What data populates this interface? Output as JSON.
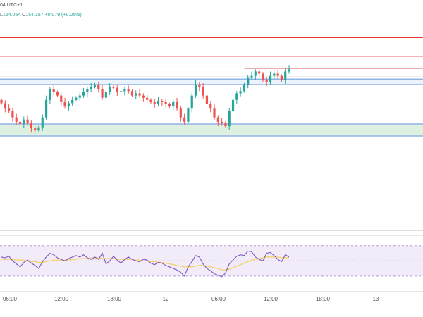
{
  "header": {
    "timezone_fragment": "04 UTC+1",
    "low_label": "L",
    "low_value": "154.054",
    "close_label": "C",
    "close_value": "154.157",
    "change": "+0.079 (+0.05%)"
  },
  "colors": {
    "up": "#26a69a",
    "down": "#ef5350",
    "resistance": "#e53935",
    "support_zone": "#c8e6c9",
    "zone_border": "#90b4e8",
    "rsi_line": "#7e57c2",
    "rsi_ma": "#f5d060",
    "rsi_band": "#ede7f6"
  },
  "x_ticks": [
    {
      "label": "06:00"
    },
    {
      "label": "12:00"
    },
    {
      "label": "18:00"
    },
    {
      "label": "12"
    },
    {
      "label": "06:00"
    },
    {
      "label": "12:00"
    },
    {
      "label": "18:00"
    },
    {
      "label": "13"
    }
  ],
  "chart_data": [
    {
      "type": "candlestick",
      "title": "",
      "xlabel": "",
      "ylabel": "",
      "ylim": [
        152.7,
        154.6
      ],
      "levels": {
        "resistance": [
          154.45,
          154.28
        ],
        "recent_high_line": 154.17,
        "upper_zone": [
          154.02,
          154.07
        ],
        "support_zone": [
          153.55,
          153.66
        ]
      },
      "close": [
        153.85,
        153.8,
        153.78,
        153.72,
        153.68,
        153.66,
        153.7,
        153.67,
        153.62,
        153.6,
        153.63,
        153.72,
        153.88,
        153.98,
        153.95,
        153.92,
        153.86,
        153.82,
        153.85,
        153.88,
        153.9,
        153.92,
        153.95,
        153.98,
        154.0,
        154.02,
        153.98,
        153.9,
        153.95,
        154.0,
        153.99,
        153.95,
        153.96,
        153.98,
        153.96,
        153.92,
        153.94,
        153.92,
        153.9,
        153.88,
        153.86,
        153.84,
        153.87,
        153.86,
        153.84,
        153.82,
        153.86,
        153.8,
        153.72,
        153.68,
        153.8,
        153.92,
        154.02,
        154.0,
        153.92,
        153.84,
        153.8,
        153.72,
        153.68,
        153.67,
        153.64,
        153.78,
        153.88,
        153.94,
        153.96,
        154.02,
        154.08,
        154.1,
        154.14,
        154.12,
        154.06,
        154.04,
        154.1,
        154.12,
        154.1,
        154.06,
        154.14,
        154.16
      ],
      "rsi": [
        55,
        54,
        56,
        50,
        46,
        42,
        48,
        51,
        47,
        44,
        40,
        49,
        55,
        60,
        58,
        54,
        52,
        50,
        53,
        55,
        57,
        55,
        58,
        54,
        52,
        55,
        52,
        60,
        46,
        50,
        56,
        51,
        47,
        52,
        55,
        52,
        50,
        49,
        52,
        51,
        47,
        45,
        48,
        47,
        44,
        42,
        40,
        38,
        35,
        30,
        42,
        49,
        57,
        55,
        46,
        40,
        37,
        33,
        31,
        29,
        34,
        46,
        51,
        56,
        58,
        57,
        63,
        62,
        55,
        52,
        50,
        60,
        61,
        57,
        52,
        49,
        58,
        55
      ],
      "rsi_ma": [
        52,
        52,
        52,
        52,
        51,
        51,
        51,
        50,
        49,
        49,
        48,
        48,
        49,
        50,
        51,
        51,
        51,
        51,
        51,
        52,
        52,
        53,
        53,
        53,
        54,
        54,
        54,
        53,
        53,
        53,
        53,
        52,
        52,
        52,
        52,
        52,
        51,
        51,
        50,
        50,
        49,
        49,
        48,
        48,
        47,
        46,
        45,
        44,
        43,
        42,
        42,
        42,
        43,
        44,
        44,
        43,
        42,
        41,
        40,
        38,
        38,
        39,
        41,
        43,
        45,
        47,
        49,
        51,
        52,
        53,
        54,
        55,
        55,
        55,
        55,
        54,
        54,
        54
      ],
      "rsi_ylim": [
        15,
        80
      ]
    }
  ]
}
